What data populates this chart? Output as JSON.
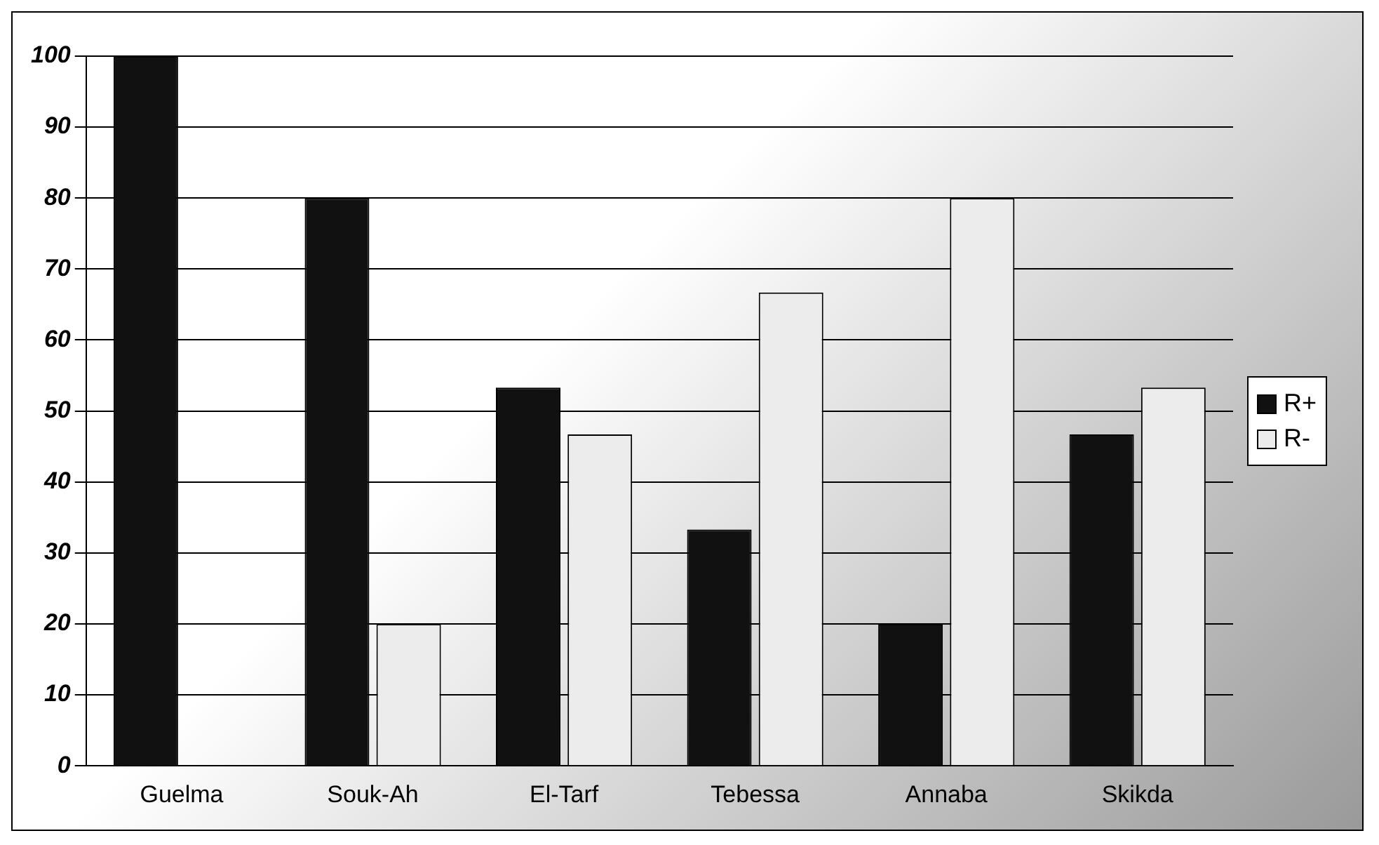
{
  "chart_data": {
    "type": "bar",
    "categories": [
      "Guelma",
      "Souk-Ah",
      "El-Tarf",
      "Tebessa",
      "Annaba",
      "Skikda"
    ],
    "series": [
      {
        "name": "R+",
        "color": "#111111",
        "values": [
          100,
          80,
          53.3,
          33.3,
          20,
          46.7
        ]
      },
      {
        "name": "R-",
        "color": "#ececec",
        "values": [
          0,
          20,
          46.7,
          66.7,
          80,
          53.3
        ]
      }
    ],
    "ylim": [
      0,
      100
    ],
    "yticks": [
      0,
      10,
      20,
      30,
      40,
      50,
      60,
      70,
      80,
      90,
      100
    ],
    "grid": "y",
    "legend": "right"
  }
}
